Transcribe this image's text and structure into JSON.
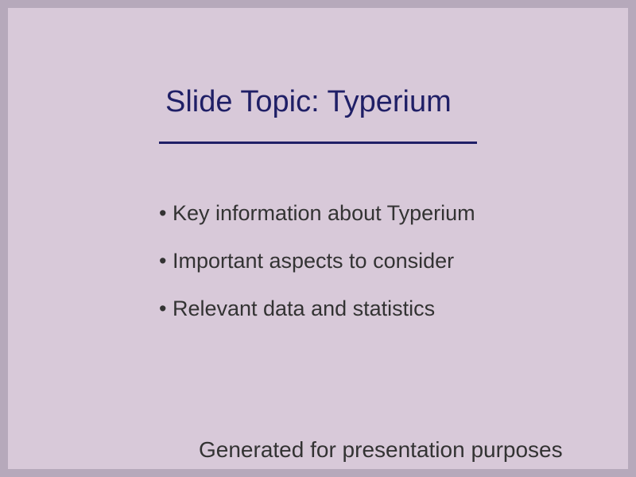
{
  "slide": {
    "title": "Slide Topic: Typerium",
    "bullets": [
      "• Key information about Typerium",
      "• Important aspects to consider",
      "• Relevant data and statistics"
    ],
    "footer": "Generated for presentation purposes"
  },
  "colors": {
    "frame": "#b6a9bb",
    "background": "#d8c9d9",
    "title": "#1f1f66",
    "text": "#333333"
  }
}
